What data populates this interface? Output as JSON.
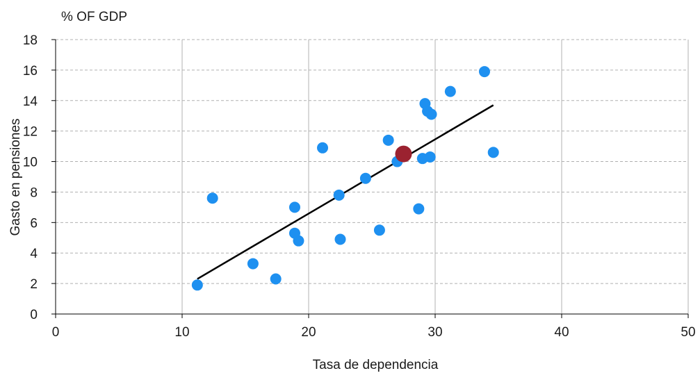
{
  "chart_data": {
    "type": "scatter",
    "unit_label": "% OF GDP",
    "xlabel": "Tasa de dependencia",
    "ylabel": "Gasto en pensiones",
    "xlim": [
      0,
      50
    ],
    "ylim": [
      0,
      18
    ],
    "x_ticks": [
      0,
      10,
      20,
      30,
      40,
      50
    ],
    "y_ticks": [
      0,
      2,
      4,
      6,
      8,
      10,
      12,
      14,
      16,
      18
    ],
    "grid": {
      "horizontal": "dashed",
      "vertical": "solid"
    },
    "colors": {
      "points": "#1e90f0",
      "highlight": "#9b2230",
      "trendline": "#000000",
      "grid": "#b0b0b0"
    },
    "points": [
      {
        "x": 11.2,
        "y": 1.9
      },
      {
        "x": 12.4,
        "y": 7.6
      },
      {
        "x": 15.6,
        "y": 3.3
      },
      {
        "x": 17.4,
        "y": 2.3
      },
      {
        "x": 18.9,
        "y": 7.0
      },
      {
        "x": 18.9,
        "y": 5.3
      },
      {
        "x": 19.2,
        "y": 4.8
      },
      {
        "x": 21.1,
        "y": 10.9
      },
      {
        "x": 22.4,
        "y": 7.8
      },
      {
        "x": 22.5,
        "y": 4.9
      },
      {
        "x": 24.5,
        "y": 8.9
      },
      {
        "x": 25.6,
        "y": 5.5
      },
      {
        "x": 26.3,
        "y": 11.4
      },
      {
        "x": 27.0,
        "y": 10.0
      },
      {
        "x": 28.7,
        "y": 6.9
      },
      {
        "x": 29.0,
        "y": 10.2
      },
      {
        "x": 29.2,
        "y": 13.8
      },
      {
        "x": 29.4,
        "y": 13.3
      },
      {
        "x": 29.6,
        "y": 10.3
      },
      {
        "x": 29.7,
        "y": 13.1
      },
      {
        "x": 31.2,
        "y": 14.6
      },
      {
        "x": 33.9,
        "y": 15.9
      },
      {
        "x": 34.6,
        "y": 10.6
      }
    ],
    "highlight_point": {
      "x": 27.5,
      "y": 10.5
    },
    "trendline": {
      "x1": 11.2,
      "y1": 2.3,
      "x2": 34.6,
      "y2": 13.7
    }
  }
}
